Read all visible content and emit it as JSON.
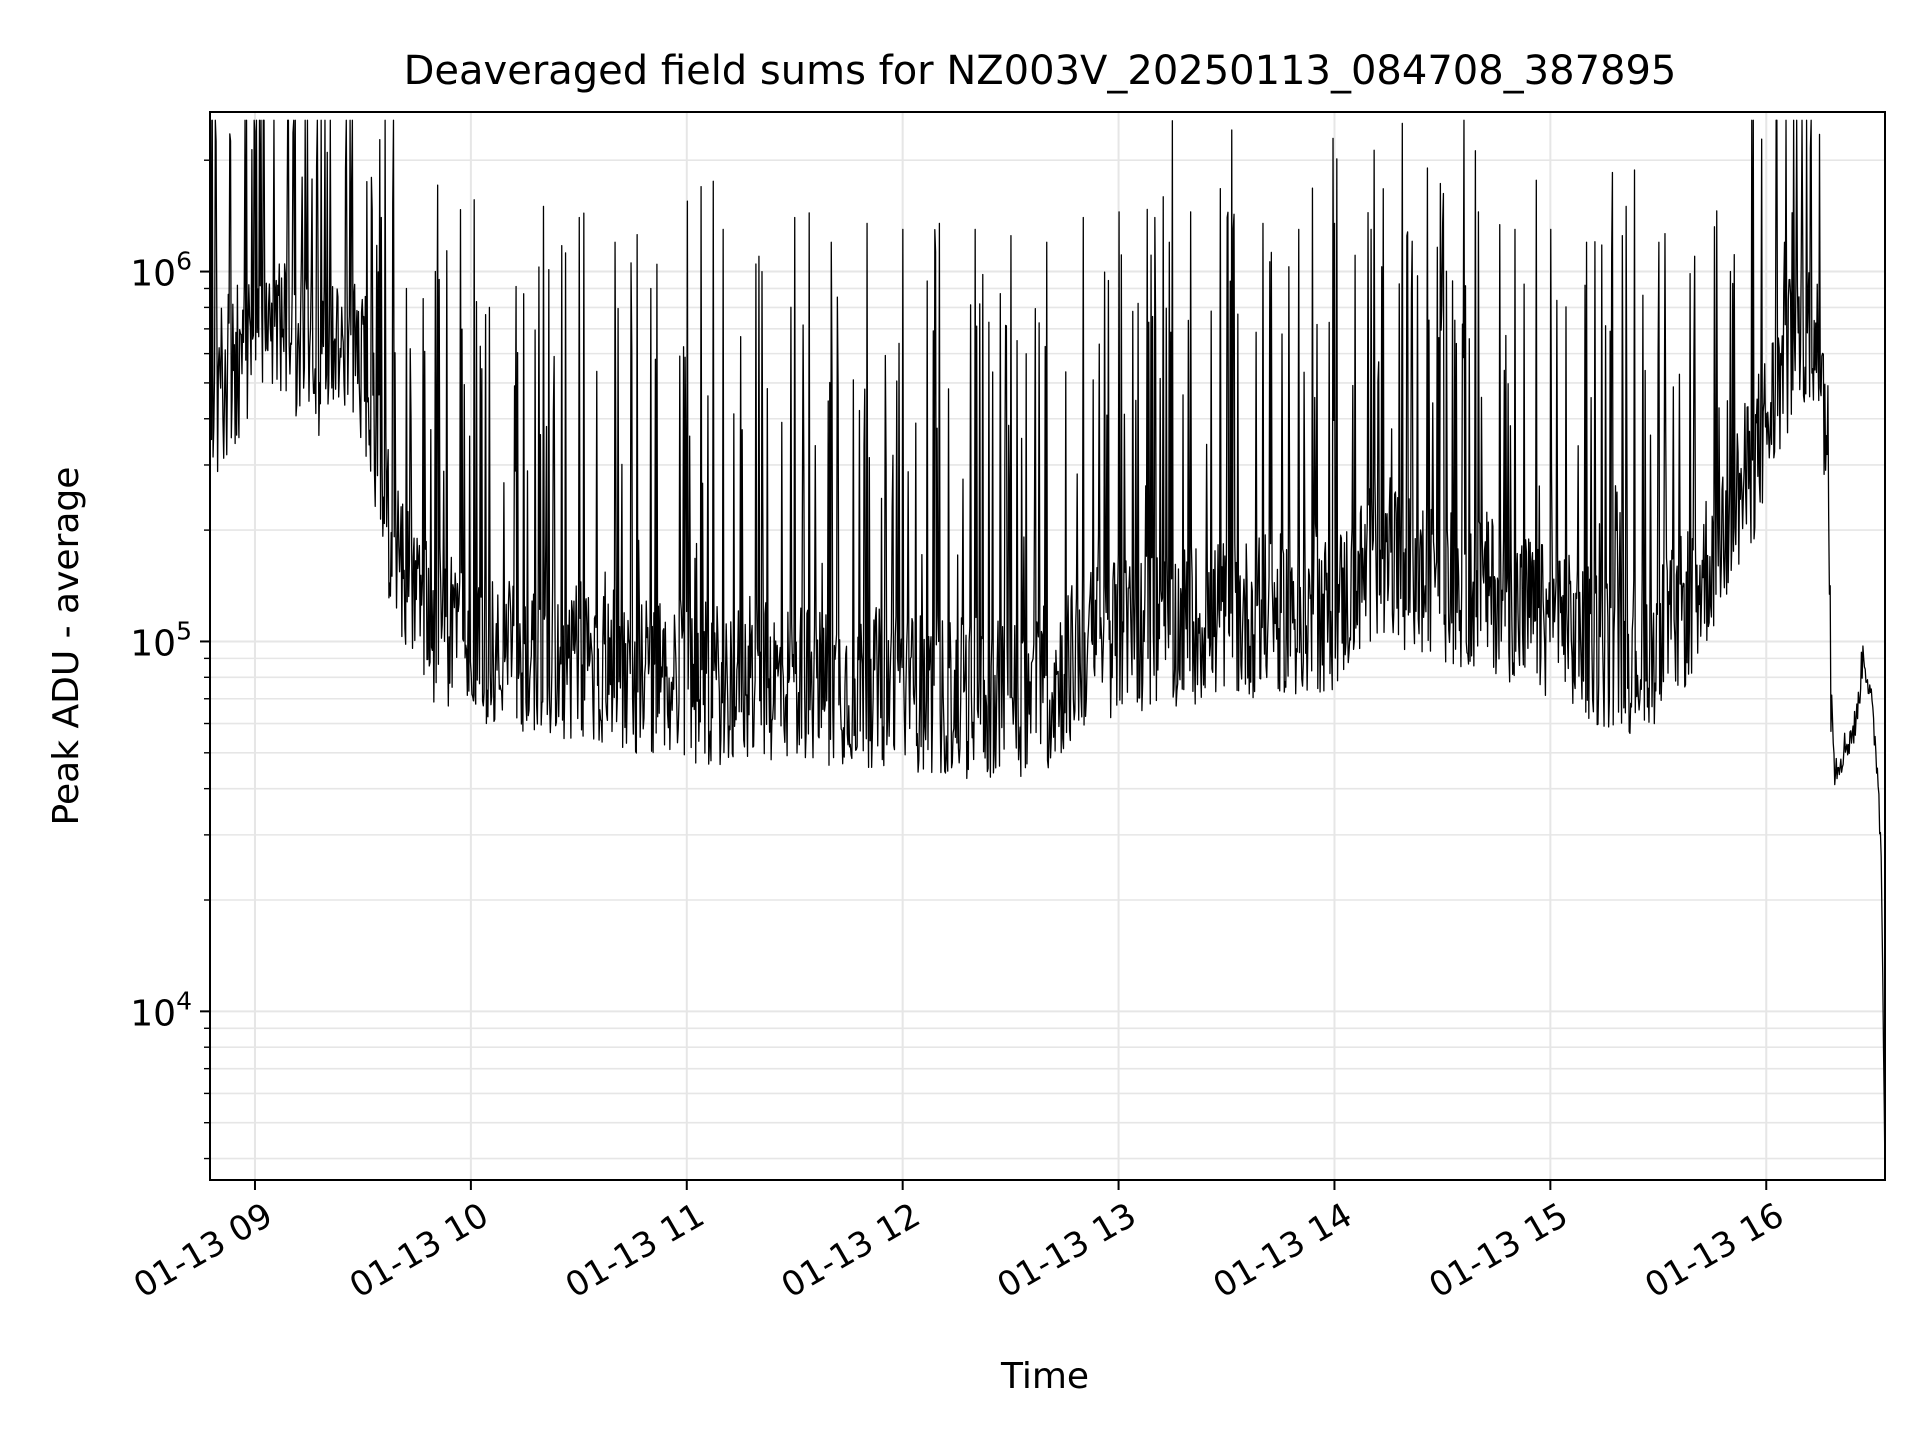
{
  "chart_data": {
    "type": "line",
    "title": "Deaveraged field sums for NZ003V_20250113_084708_387895",
    "xlabel": "Time",
    "ylabel": "Peak ADU - average",
    "yscale": "log",
    "ylim": [
      3500,
      2700000
    ],
    "xlim": [
      "2025-01-13T08:47:30",
      "2025-01-13T16:33:00"
    ],
    "grid": true,
    "line_color": "#000000",
    "grid_color": "#e6e6e6",
    "x_ticks": [
      {
        "t": "2025-01-13T09:00",
        "label": "01-13 09"
      },
      {
        "t": "2025-01-13T10:00",
        "label": "01-13 10"
      },
      {
        "t": "2025-01-13T11:00",
        "label": "01-13 11"
      },
      {
        "t": "2025-01-13T12:00",
        "label": "01-13 12"
      },
      {
        "t": "2025-01-13T13:00",
        "label": "01-13 13"
      },
      {
        "t": "2025-01-13T14:00",
        "label": "01-13 14"
      },
      {
        "t": "2025-01-13T15:00",
        "label": "01-13 15"
      },
      {
        "t": "2025-01-13T16:00",
        "label": "01-13 16"
      }
    ],
    "y_ticks": [
      {
        "value": 10000,
        "base": "10",
        "exp": "4"
      },
      {
        "value": 100000,
        "base": "10",
        "exp": "5"
      },
      {
        "value": 1000000,
        "base": "10",
        "exp": "6"
      }
    ],
    "series": [
      {
        "points": [
          [
            "2025-01-13T08:47:30",
            380000
          ],
          [
            "2025-01-13T08:50:00",
            470000
          ],
          [
            "2025-01-13T08:55:00",
            560000
          ],
          [
            "2025-01-13T09:00:00",
            650000
          ],
          [
            "2025-01-13T09:05:00",
            720000
          ],
          [
            "2025-01-13T09:10:00",
            690000
          ],
          [
            "2025-01-13T09:15:00",
            620000
          ],
          [
            "2025-01-13T09:20:00",
            580000
          ],
          [
            "2025-01-13T09:25:00",
            600000
          ],
          [
            "2025-01-13T09:30:00",
            560000
          ],
          [
            "2025-01-13T09:33:00",
            420000
          ],
          [
            "2025-01-13T09:35:00",
            260000
          ],
          [
            "2025-01-13T09:40:00",
            170000
          ],
          [
            "2025-01-13T09:45:00",
            140000
          ],
          [
            "2025-01-13T09:50:00",
            110000
          ],
          [
            "2025-01-13T10:00:00",
            100000
          ],
          [
            "2025-01-13T10:10:00",
            95000
          ],
          [
            "2025-01-13T10:20:00",
            90000
          ],
          [
            "2025-01-13T10:30:00",
            88000
          ],
          [
            "2025-01-13T10:45:00",
            82000
          ],
          [
            "2025-01-13T11:00:00",
            78000
          ],
          [
            "2025-01-13T11:15:00",
            76000
          ],
          [
            "2025-01-13T11:30:00",
            78000
          ],
          [
            "2025-01-13T11:45:00",
            76000
          ],
          [
            "2025-01-13T12:00:00",
            74000
          ],
          [
            "2025-01-13T12:15:00",
            70000
          ],
          [
            "2025-01-13T12:30:00",
            70000
          ],
          [
            "2025-01-13T12:40:00",
            72000
          ],
          [
            "2025-01-13T12:50:00",
            95000
          ],
          [
            "2025-01-13T13:00:00",
            105000
          ],
          [
            "2025-01-13T13:15:00",
            110000
          ],
          [
            "2025-01-13T13:30:00",
            115000
          ],
          [
            "2025-01-13T13:45:00",
            118000
          ],
          [
            "2025-01-13T14:00:00",
            120000
          ],
          [
            "2025-01-13T14:10:00",
            160000
          ],
          [
            "2025-01-13T14:20:00",
            150000
          ],
          [
            "2025-01-13T14:30:00",
            140000
          ],
          [
            "2025-01-13T14:45:00",
            135000
          ],
          [
            "2025-01-13T15:00:00",
            110000
          ],
          [
            "2025-01-13T15:15:00",
            95000
          ],
          [
            "2025-01-13T15:25:00",
            92000
          ],
          [
            "2025-01-13T15:35:00",
            110000
          ],
          [
            "2025-01-13T15:45:00",
            170000
          ],
          [
            "2025-01-13T15:55:00",
            280000
          ],
          [
            "2025-01-13T16:00:00",
            380000
          ],
          [
            "2025-01-13T16:05:00",
            550000
          ],
          [
            "2025-01-13T16:10:00",
            680000
          ],
          [
            "2025-01-13T16:15:00",
            600000
          ],
          [
            "2025-01-13T16:17:00",
            380000
          ],
          [
            "2025-01-13T16:18:00",
            90000
          ],
          [
            "2025-01-13T16:19:00",
            45000
          ],
          [
            "2025-01-13T16:22:00",
            52000
          ],
          [
            "2025-01-13T16:25:00",
            60000
          ],
          [
            "2025-01-13T16:27:00",
            95000
          ],
          [
            "2025-01-13T16:29:00",
            70000
          ],
          [
            "2025-01-13T16:31:00",
            45000
          ],
          [
            "2025-01-13T16:32:00",
            25000
          ],
          [
            "2025-01-13T16:33:00",
            4000
          ]
        ],
        "spikes": [
          [
            "2025-01-13T09:13:00",
            1800000
          ],
          [
            "2025-01-13T09:20:00",
            2100000
          ],
          [
            "2025-01-13T09:25:00",
            1900000
          ],
          [
            "2025-01-13T09:31:00",
            1750000
          ],
          [
            "2025-01-13T09:42:00",
            900000
          ],
          [
            "2025-01-13T09:50:00",
            1000000
          ],
          [
            "2025-01-13T10:05:00",
            800000
          ],
          [
            "2025-01-13T10:20:00",
            1500000
          ],
          [
            "2025-01-13T10:30:00",
            1400000
          ],
          [
            "2025-01-13T10:40:00",
            1200000
          ],
          [
            "2025-01-13T10:50:00",
            900000
          ],
          [
            "2025-01-13T11:00:00",
            1550000
          ],
          [
            "2025-01-13T11:10:00",
            1300000
          ],
          [
            "2025-01-13T11:20:00",
            1100000
          ],
          [
            "2025-01-13T11:30:00",
            1400000
          ],
          [
            "2025-01-13T11:40:00",
            1200000
          ],
          [
            "2025-01-13T11:50:00",
            1350000
          ],
          [
            "2025-01-13T12:00:00",
            1300000
          ],
          [
            "2025-01-13T12:10:00",
            1350000
          ],
          [
            "2025-01-13T12:20:00",
            1300000
          ],
          [
            "2025-01-13T12:30:00",
            1250000
          ],
          [
            "2025-01-13T12:40:00",
            1200000
          ],
          [
            "2025-01-13T12:50:00",
            1400000
          ],
          [
            "2025-01-13T13:00:00",
            1450000
          ],
          [
            "2025-01-13T13:10:00",
            1400000
          ],
          [
            "2025-01-13T13:20:00",
            1450000
          ],
          [
            "2025-01-13T13:30:00",
            1400000
          ],
          [
            "2025-01-13T13:40:00",
            1350000
          ],
          [
            "2025-01-13T13:50:00",
            1300000
          ],
          [
            "2025-01-13T14:00:00",
            1350000
          ],
          [
            "2025-01-13T14:10:00",
            1300000
          ],
          [
            "2025-01-13T14:20:00",
            1250000
          ],
          [
            "2025-01-13T14:30:00",
            1350000
          ],
          [
            "2025-01-13T14:40:00",
            1450000
          ],
          [
            "2025-01-13T14:50:00",
            1300000
          ],
          [
            "2025-01-13T15:00:00",
            1300000
          ],
          [
            "2025-01-13T15:10:00",
            1200000
          ],
          [
            "2025-01-13T15:20:00",
            1250000
          ],
          [
            "2025-01-13T15:30:00",
            1200000
          ],
          [
            "2025-01-13T15:40:00",
            1100000
          ],
          [
            "2025-01-13T15:50:00",
            1000000
          ],
          [
            "2025-01-13T16:05:00",
            1200000
          ],
          [
            "2025-01-13T16:10:00",
            1150000
          ]
        ]
      }
    ]
  }
}
